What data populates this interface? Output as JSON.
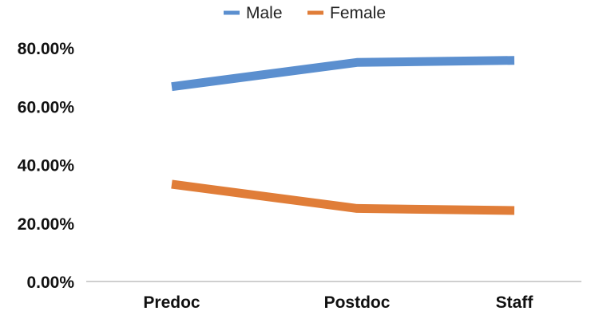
{
  "chart_data": {
    "type": "line",
    "categories": [
      "Predoc",
      "Postdoc",
      "Staff"
    ],
    "series": [
      {
        "name": "Male",
        "values": [
          66.7,
          75.0,
          75.7
        ],
        "color": "#5B8FCF"
      },
      {
        "name": "Female",
        "values": [
          33.3,
          25.0,
          24.3
        ],
        "color": "#E07D38"
      }
    ],
    "title": "",
    "xlabel": "",
    "ylabel": "",
    "ylim": [
      0,
      80
    ],
    "yticks": [
      "0.00%",
      "20.00%",
      "40.00%",
      "60.00%",
      "80.00%"
    ],
    "ytick_values": [
      0,
      20,
      40,
      60,
      80
    ],
    "legend_position": "top",
    "grid": false,
    "axis_color": "#BFBFBF"
  }
}
